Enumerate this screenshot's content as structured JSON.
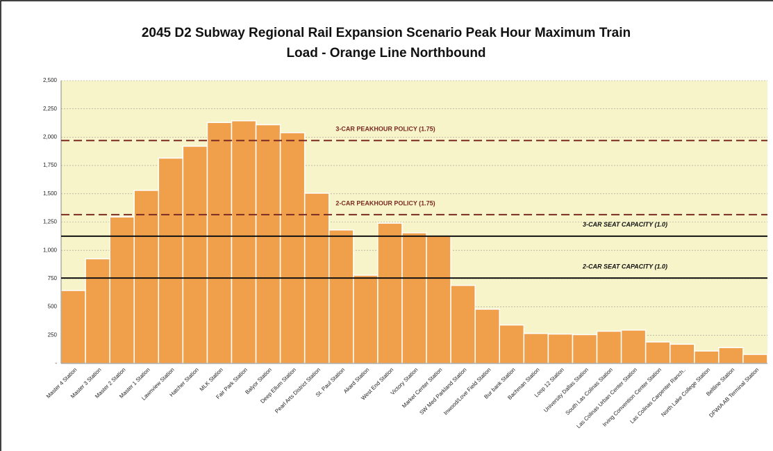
{
  "chart_data": {
    "type": "bar",
    "title": [
      "2045 D2 Subway Regional  Rail Expansion Scenario Peak Hour Maximum Train",
      "Load - Orange Line Northbound"
    ],
    "categories": [
      "Master 4 Station",
      "Master 3 Station",
      "Master 2 Station",
      "Master 1 Station",
      "Lawnview Station",
      "Hatcher Station",
      "MLK Station",
      "Fair Park Station",
      "Balyor Station",
      "Deep Ellum Station",
      "Pearl Arts District Station",
      "St. Paul Station",
      "Akard Station",
      "West End Station",
      "Victory Station",
      "Market Center Station",
      "SW Med Parkland Station",
      "Inwood/Love Field Station",
      "Bur bank Station",
      "Bachman Station",
      "Loop 12 Station",
      "University Dallas Station",
      "South Las Colinas Station",
      "Las Colinas Urban Center Station",
      "Irving Convention Center Station",
      "Las Colinas Carpenter Ranch..",
      "North Lake College Station",
      "Beltline Station",
      "DFWIA AB Terminal Station"
    ],
    "values": [
      645,
      925,
      1295,
      1530,
      1815,
      1920,
      2130,
      2145,
      2110,
      2040,
      1505,
      1180,
      780,
      1240,
      1155,
      1125,
      690,
      480,
      340,
      265,
      260,
      255,
      285,
      295,
      190,
      170,
      110,
      140,
      80
    ],
    "color": "#f0a04b",
    "ylim": [
      0,
      2500
    ],
    "yticks": [
      {
        "value": 0,
        "label": "-"
      },
      250,
      500,
      750,
      {
        "value": 1000,
        "label": "1,000"
      },
      {
        "value": 1250,
        "label": "1,250"
      },
      {
        "value": 1500,
        "label": "1,500"
      },
      {
        "value": 1750,
        "label": "1,750"
      },
      {
        "value": 2000,
        "label": "2,000"
      },
      {
        "value": 2250,
        "label": "2,250"
      },
      {
        "value": 2500,
        "label": "2,500"
      }
    ],
    "grid": true,
    "reference_lines": [
      {
        "label": "3-CAR PEAKHOUR POLICY (1.75)",
        "value": 1970,
        "style": "dashed",
        "color": "#7a2a22"
      },
      {
        "label": "2-CAR PEAKHOUR POLICY (1.75)",
        "value": 1315,
        "style": "dashed",
        "color": "#7a2a22"
      },
      {
        "label": "3-CAR SEAT CAPACITY (1.0)",
        "value": 1125,
        "style": "solid",
        "color": "#111111"
      },
      {
        "label": "2-CAR SEAT CAPACITY (1.0)",
        "value": 755,
        "style": "solid",
        "color": "#111111"
      }
    ]
  }
}
